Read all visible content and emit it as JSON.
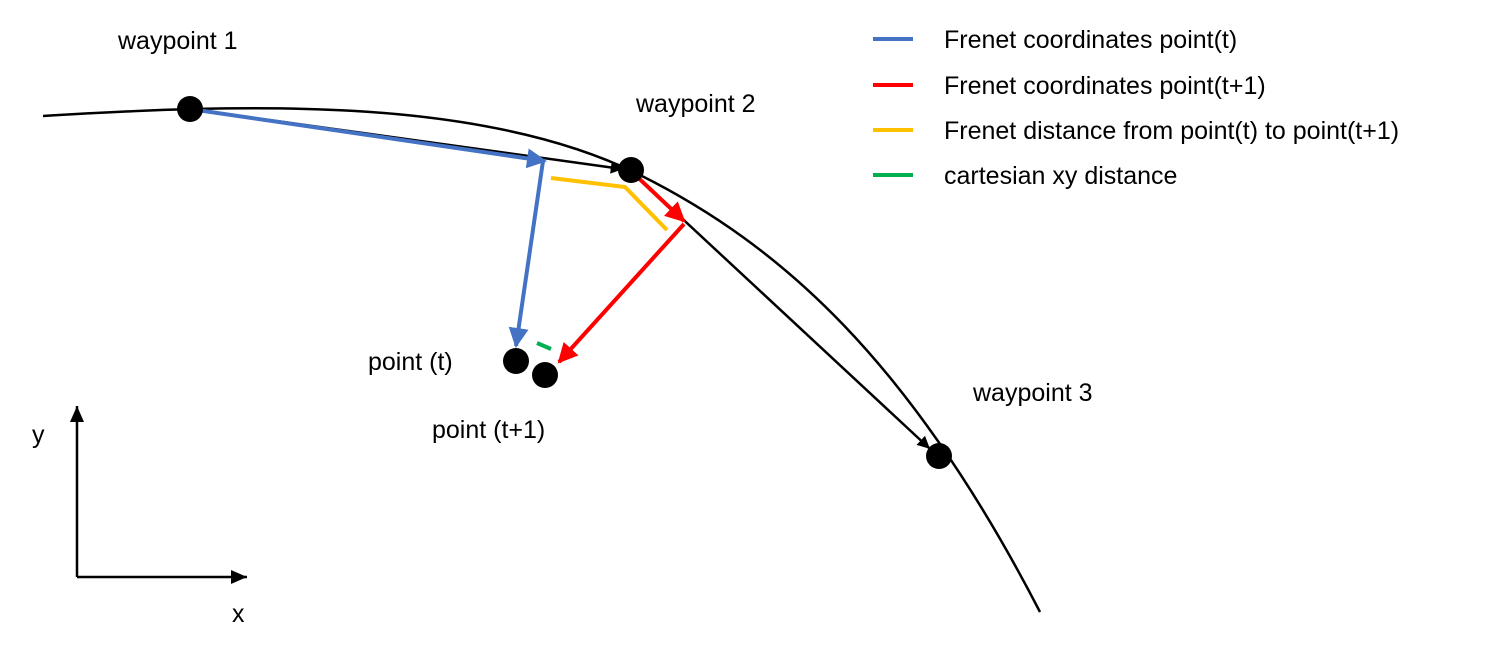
{
  "labels": {
    "waypoint_1": "waypoint 1",
    "waypoint_2": "waypoint 2",
    "waypoint_3": "waypoint 3",
    "point_t": "point (t)",
    "point_t1": "point (t+1)",
    "axis_x": "x",
    "axis_y": "y"
  },
  "legend": {
    "items": [
      {
        "label": "Frenet coordinates point(t)",
        "color": "#4472C4"
      },
      {
        "label": "Frenet coordinates point(t+1)",
        "color": "#FF0000"
      },
      {
        "label": "Frenet distance from point(t) to point(t+1)",
        "color": "#FFC000"
      },
      {
        "label": "cartesian xy distance",
        "color": "#00B050"
      }
    ]
  },
  "colors": {
    "curve": "#000000",
    "waypoint": "#000000",
    "blue": "#4472C4",
    "red": "#FF0000",
    "yellow": "#FFC000",
    "green": "#00B050"
  }
}
